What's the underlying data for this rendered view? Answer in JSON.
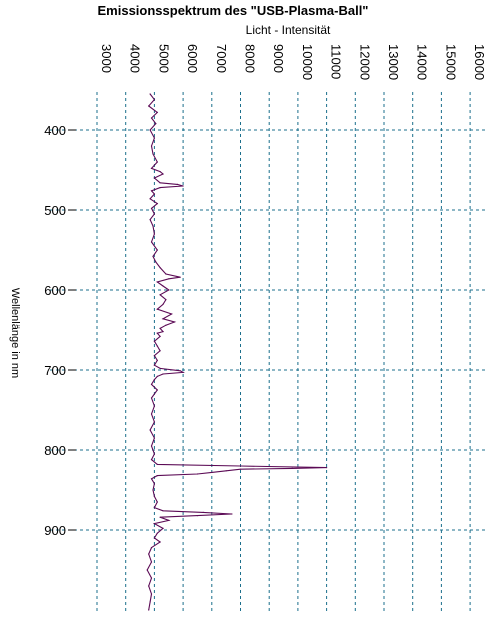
{
  "chart_data": {
    "type": "line",
    "orientation": "vertical-wavelength",
    "title": "Emissionsspektrum  des  \"USB-Plasma-Ball\"",
    "xlabel": "Licht  -  Intensität",
    "ylabel": "Wellenlänge  in  nm",
    "xlim": [
      2500,
      16500
    ],
    "ylim": [
      355,
      1000
    ],
    "x_ticks": [
      3000,
      4000,
      5000,
      6000,
      7000,
      8000,
      9000,
      10000,
      11000,
      12000,
      13000,
      14000,
      15000,
      16000
    ],
    "y_ticks": [
      400,
      500,
      600,
      700,
      800,
      900
    ],
    "grid": true,
    "colors": {
      "series": "#5b0a55",
      "grid": "#1b6f8c"
    },
    "series": [
      {
        "wavelength": [
          355,
          362,
          370,
          378,
          385,
          392,
          400,
          410,
          420,
          430,
          440,
          448,
          452,
          455,
          460,
          466,
          468,
          470,
          472,
          476,
          480,
          486,
          492,
          498,
          505,
          512,
          520,
          530,
          540,
          550,
          558,
          565,
          572,
          580,
          584,
          586,
          590,
          595,
          600,
          606,
          612,
          618,
          624,
          630,
          636,
          640,
          644,
          648,
          652,
          654,
          658,
          664,
          670,
          676,
          682,
          688,
          694,
          698,
          701,
          703,
          705,
          708,
          712,
          718,
          725,
          735,
          745,
          755,
          765,
          775,
          785,
          795,
          805,
          812,
          818,
          820,
          822,
          823,
          824,
          826,
          828,
          830,
          832,
          836,
          842,
          850,
          858,
          865,
          872,
          876,
          878,
          880,
          882,
          884,
          888,
          892,
          898,
          904,
          910,
          915,
          922,
          930,
          940,
          950,
          960,
          970,
          980,
          990,
          1000
        ],
        "intensity": [
          4850,
          5000,
          4800,
          5100,
          4900,
          5050,
          4850,
          5000,
          4900,
          4950,
          5100,
          4900,
          5200,
          5300,
          5000,
          5200,
          5800,
          6000,
          5200,
          4900,
          5000,
          4850,
          5100,
          4900,
          5000,
          4850,
          4950,
          5000,
          4900,
          5100,
          4950,
          5050,
          5200,
          5400,
          5900,
          5500,
          5100,
          5300,
          5500,
          5200,
          5400,
          5300,
          5100,
          5600,
          5300,
          5700,
          5400,
          5200,
          5300,
          5100,
          5200,
          5000,
          5100,
          5200,
          5000,
          5100,
          5000,
          5200,
          5900,
          6000,
          5300,
          5100,
          5000,
          4900,
          5100,
          4900,
          5000,
          4900,
          5000,
          4850,
          5000,
          4900,
          5000,
          4900,
          5100,
          8000,
          11000,
          9800,
          8000,
          7500,
          7000,
          6500,
          5100,
          4900,
          5000,
          4950,
          5000,
          5100,
          5000,
          5300,
          6700,
          7700,
          6500,
          5200,
          5500,
          5000,
          5300,
          5100,
          5000,
          5200,
          4900,
          4800,
          4900,
          4750,
          4900,
          4800,
          4900,
          4850,
          4800
        ]
      }
    ]
  }
}
